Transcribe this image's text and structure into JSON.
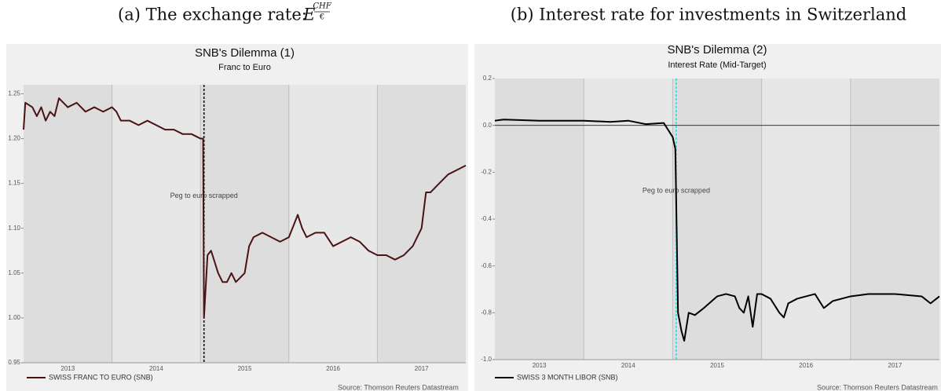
{
  "chart_data": [
    {
      "type": "line",
      "caption": "(a) The exchange rate:",
      "caption_symbol": "E",
      "caption_sup_num": "CHF",
      "caption_sup_den": "€",
      "title": "SNB's Dilemma (1)",
      "subtitle": "Franc to Euro",
      "source": "Source: Thomson Reuters Datastream",
      "x": [
        2013.0,
        2013.02,
        2013.1,
        2013.15,
        2013.2,
        2013.25,
        2013.3,
        2013.35,
        2013.4,
        2013.45,
        2013.5,
        2013.6,
        2013.7,
        2013.8,
        2013.9,
        2014.0,
        2014.05,
        2014.1,
        2014.2,
        2014.3,
        2014.4,
        2014.5,
        2014.6,
        2014.7,
        2014.8,
        2014.9,
        2015.0,
        2015.03,
        2015.04,
        2015.08,
        2015.12,
        2015.2,
        2015.25,
        2015.3,
        2015.35,
        2015.4,
        2015.45,
        2015.5,
        2015.55,
        2015.6,
        2015.7,
        2015.8,
        2015.9,
        2016.0,
        2016.1,
        2016.15,
        2016.2,
        2016.3,
        2016.4,
        2016.5,
        2016.6,
        2016.7,
        2016.8,
        2016.9,
        2017.0,
        2017.1,
        2017.2,
        2017.3,
        2017.4,
        2017.5,
        2017.55,
        2017.6,
        2017.7,
        2017.8,
        2017.9,
        2018.0
      ],
      "series": [
        {
          "name": "SWISS FRANC TO EURO (SNB)",
          "color": "#4a1212",
          "values": [
            1.21,
            1.24,
            1.235,
            1.225,
            1.235,
            1.22,
            1.23,
            1.225,
            1.245,
            1.24,
            1.235,
            1.24,
            1.23,
            1.235,
            1.23,
            1.235,
            1.23,
            1.22,
            1.22,
            1.215,
            1.22,
            1.215,
            1.21,
            1.21,
            1.205,
            1.205,
            1.2,
            1.2,
            1.0,
            1.07,
            1.075,
            1.05,
            1.04,
            1.04,
            1.05,
            1.04,
            1.045,
            1.05,
            1.08,
            1.09,
            1.095,
            1.09,
            1.085,
            1.09,
            1.115,
            1.1,
            1.09,
            1.095,
            1.095,
            1.08,
            1.085,
            1.09,
            1.085,
            1.075,
            1.07,
            1.07,
            1.065,
            1.07,
            1.08,
            1.1,
            1.14,
            1.14,
            1.15,
            1.16,
            1.165,
            1.17
          ]
        }
      ],
      "annotation": {
        "text": "Peg to euro scrapped",
        "x": 2015.04,
        "color": "#111111"
      },
      "xlim": [
        2013,
        2018
      ],
      "xticks": [
        2013,
        2014,
        2015,
        2016,
        2017
      ],
      "ylim": [
        0.95,
        1.26
      ],
      "yticks": [
        0.95,
        {
          "value": 1.0,
          "label": "1.00"
        },
        1.05,
        {
          "value": 1.1,
          "label": "1.10"
        },
        1.15,
        {
          "value": 1.2,
          "label": "1.20"
        },
        1.25
      ],
      "grid": true
    },
    {
      "type": "line",
      "caption": "(b) Interest rate for investments in Switzerland",
      "title": "SNB's Dilemma (2)",
      "subtitle": "Interest Rate (Mid-Target)",
      "source": "Source: Thomson Reuters Datastream",
      "x": [
        2013.0,
        2013.1,
        2013.5,
        2014.0,
        2014.3,
        2014.5,
        2014.7,
        2014.9,
        2015.0,
        2015.03,
        2015.06,
        2015.1,
        2015.13,
        2015.18,
        2015.25,
        2015.35,
        2015.5,
        2015.6,
        2015.7,
        2015.75,
        2015.8,
        2015.85,
        2015.9,
        2015.95,
        2016.0,
        2016.1,
        2016.2,
        2016.25,
        2016.3,
        2016.4,
        2016.5,
        2016.6,
        2016.7,
        2016.8,
        2016.9,
        2017.0,
        2017.2,
        2017.5,
        2017.8,
        2017.9,
        2018.0
      ],
      "series": [
        {
          "name": "SWISS 3 MONTH LIBOR (SNB)",
          "color": "#000000",
          "values": [
            0.02,
            0.025,
            0.02,
            0.02,
            0.015,
            0.02,
            0.005,
            0.01,
            -0.05,
            -0.1,
            -0.8,
            -0.88,
            -0.92,
            -0.8,
            -0.81,
            -0.78,
            -0.73,
            -0.72,
            -0.73,
            -0.78,
            -0.8,
            -0.73,
            -0.86,
            -0.72,
            -0.72,
            -0.74,
            -0.8,
            -0.82,
            -0.76,
            -0.74,
            -0.73,
            -0.72,
            -0.78,
            -0.75,
            -0.74,
            -0.73,
            -0.72,
            -0.72,
            -0.73,
            -0.76,
            -0.73
          ]
        }
      ],
      "annotation": {
        "text": "Peg to euro scrapped",
        "x": 2015.04,
        "color": "#22ddf0"
      },
      "xlim": [
        2013,
        2018
      ],
      "xticks": [
        2013,
        2014,
        2015,
        2016,
        2017
      ],
      "ylim": [
        -1.0,
        0.2
      ],
      "yticks": [
        {
          "value": -1.0,
          "label": "-1.0"
        },
        -0.8,
        -0.6,
        -0.4,
        -0.2,
        {
          "value": 0.0,
          "label": "0.0"
        },
        0.2
      ],
      "grid": true,
      "zero_line": true
    }
  ]
}
